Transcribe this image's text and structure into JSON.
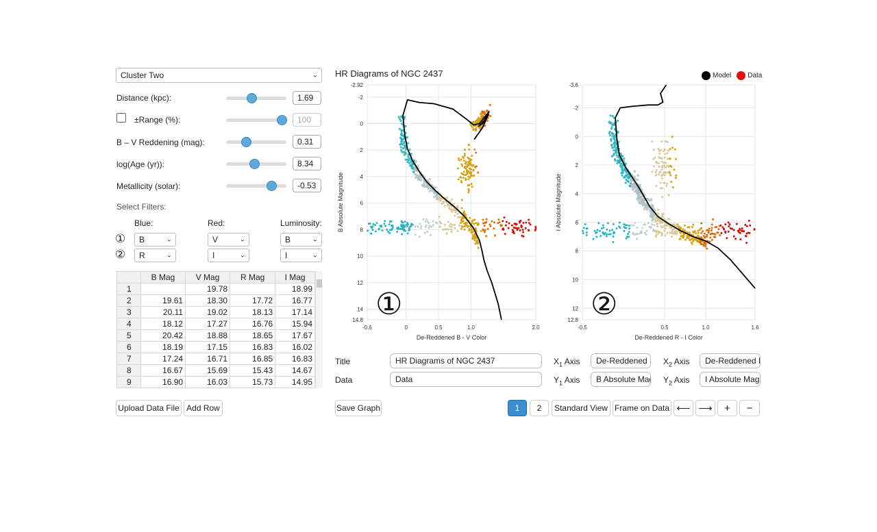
{
  "controls": {
    "cluster_select": "Cluster Two",
    "distance": {
      "label": "Distance (kpc):",
      "value": "1.69",
      "fraction": 0.42
    },
    "range": {
      "label": "±Range (%):",
      "value": "100",
      "fraction": 0.92
    },
    "reddening": {
      "label": "B – V Reddening (mag):",
      "value": "0.31",
      "fraction": 0.33
    },
    "age": {
      "label": "log(Age (yr)):",
      "value": "8.34",
      "fraction": 0.47
    },
    "metallicity": {
      "label": "Metallicity (solar):",
      "value": "-0.53",
      "fraction": 0.75
    }
  },
  "filters": {
    "title": "Select Filters:",
    "headers": {
      "blue": "Blue:",
      "red": "Red:",
      "luminosity": "Luminosity:"
    },
    "rows": [
      {
        "marker": "①",
        "blue": "B",
        "red": "V",
        "luminosity": "B"
      },
      {
        "marker": "②",
        "blue": "R",
        "red": "I",
        "luminosity": "I"
      }
    ]
  },
  "table": {
    "columns": [
      "B Mag",
      "V Mag",
      "R Mag",
      "I Mag"
    ],
    "rows": [
      {
        "n": "1",
        "b": "",
        "v": "19.78",
        "r": "",
        "i": "18.99"
      },
      {
        "n": "2",
        "b": "19.61",
        "v": "18.30",
        "r": "17.72",
        "i": "16.77"
      },
      {
        "n": "3",
        "b": "20.11",
        "v": "19.02",
        "r": "18.13",
        "i": "17.14"
      },
      {
        "n": "4",
        "b": "18.12",
        "v": "17.27",
        "r": "16.76",
        "i": "15.94"
      },
      {
        "n": "5",
        "b": "20.42",
        "v": "18.88",
        "r": "18.65",
        "i": "17.67"
      },
      {
        "n": "6",
        "b": "18.19",
        "v": "17.15",
        "r": "16.83",
        "i": "16.02"
      },
      {
        "n": "7",
        "b": "17.24",
        "v": "16.71",
        "r": "16.85",
        "i": "16.83"
      },
      {
        "n": "8",
        "b": "16.67",
        "v": "15.69",
        "r": "15.43",
        "i": "14.67"
      },
      {
        "n": "9",
        "b": "16.90",
        "v": "16.03",
        "r": "15.73",
        "i": "14.95"
      }
    ]
  },
  "buttons": {
    "upload": "Upload Data File",
    "add_row": "Add Row",
    "save_graph": "Save Graph",
    "page1": "1",
    "page2": "2",
    "standard_view": "Standard View",
    "frame_on_data": "Frame on Data",
    "left": "⟵",
    "right": "⟶",
    "plus": "+",
    "minus": "−"
  },
  "graph": {
    "heading": "HR Diagrams of NGC 2437",
    "legend": {
      "model": "Model",
      "data": "Data"
    },
    "legend_colors": {
      "model": "#000000",
      "data": "#e01010"
    }
  },
  "form": {
    "title_label": "Title",
    "title_value": "HR Diagrams of NGC 2437",
    "data_label": "Data",
    "data_value": "Data",
    "x1_label": "X",
    "x1_sub": "1",
    "x1_suffix": " Axis",
    "x1_value": "De-Reddened B",
    "x2_label": "X",
    "x2_sub": "2",
    "x2_suffix": " Axis",
    "x2_value": "De-Reddened R",
    "y1_label": "Y",
    "y1_sub": "1",
    "y1_suffix": " Axis",
    "y1_value": "B Absolute Mag",
    "y2_label": "Y",
    "y2_sub": "2",
    "y2_suffix": " Axis",
    "y2_value": "I Absolute Magn"
  },
  "chart_data": [
    {
      "type": "scatter",
      "marker": "①",
      "xlabel": "De-Reddened B - V Color",
      "ylabel": "B Absolute Magnitude",
      "xlim": [
        -0.6,
        2.0
      ],
      "ylim": [
        14.8,
        -2.92
      ],
      "x_ticks": [
        "-0.6",
        "0",
        "0.5",
        "1.0",
        "2.0"
      ],
      "x_tick_values": [
        -0.6,
        0,
        0.5,
        1.0,
        2.0
      ],
      "y_ticks": [
        "-2.92",
        "-2",
        "0",
        "2",
        "4",
        "6",
        "8",
        "10",
        "12",
        "14",
        "14.8"
      ],
      "y_tick_values": [
        -2.92,
        -2,
        0,
        2,
        4,
        6,
        8,
        10,
        12,
        14,
        14.8
      ],
      "model_x": [
        1.05,
        1.18,
        1.27,
        1.2,
        1.12,
        1.2,
        1.28,
        1.13,
        1.04,
        0.94,
        0.72,
        0.43,
        0.2,
        0.02,
        -0.05,
        -0.02,
        0.02,
        0.1,
        0.2,
        0.32,
        0.46,
        0.6,
        0.75,
        0.9,
        1.04,
        1.13,
        1.17,
        1.2,
        1.25,
        1.32,
        1.37,
        1.42,
        1.47
      ],
      "model_y": [
        1.2,
        0.3,
        -0.7,
        -0.1,
        0.2,
        -0.2,
        -0.9,
        0.0,
        0.1,
        -0.3,
        -1.1,
        -1.5,
        -1.6,
        -1.8,
        -0.6,
        0.9,
        1.9,
        2.8,
        3.6,
        4.4,
        5.1,
        5.7,
        6.3,
        7.0,
        7.9,
        8.8,
        9.6,
        10.3,
        11.1,
        12.0,
        12.8,
        13.6,
        14.8
      ]
    },
    {
      "type": "scatter",
      "marker": "②",
      "xlabel": "De-Reddened R - I Color",
      "ylabel": "I Absolute Magnitude",
      "xlim": [
        -0.5,
        1.6
      ],
      "ylim": [
        12.8,
        -3.6
      ],
      "x_ticks": [
        "-0.5",
        "0.5",
        "1.0",
        "1.6"
      ],
      "x_tick_values": [
        -0.5,
        0.5,
        1.0,
        1.6
      ],
      "y_ticks": [
        "-3.6",
        "-2",
        "0",
        "2",
        "4",
        "6",
        "8",
        "10",
        "12",
        "12.8"
      ],
      "y_tick_values": [
        -3.6,
        -2,
        0,
        2,
        4,
        6,
        8,
        10,
        12,
        12.8
      ],
      "model_x": [
        0.52,
        0.45,
        0.48,
        0.42,
        0.3,
        0.1,
        -0.04,
        -0.1,
        -0.08,
        -0.05,
        0.02,
        0.1,
        0.18,
        0.25,
        0.32,
        0.42,
        0.55,
        0.7,
        0.85,
        1.0,
        1.15,
        1.3,
        1.45,
        1.6
      ],
      "model_y": [
        -3.6,
        -3.0,
        -2.4,
        -2.2,
        -2.2,
        -2.1,
        -2.0,
        -1.3,
        0.2,
        1.3,
        2.1,
        2.8,
        3.5,
        4.2,
        4.9,
        5.6,
        6.1,
        6.6,
        7.0,
        7.3,
        7.8,
        8.6,
        9.6,
        10.6
      ]
    }
  ]
}
